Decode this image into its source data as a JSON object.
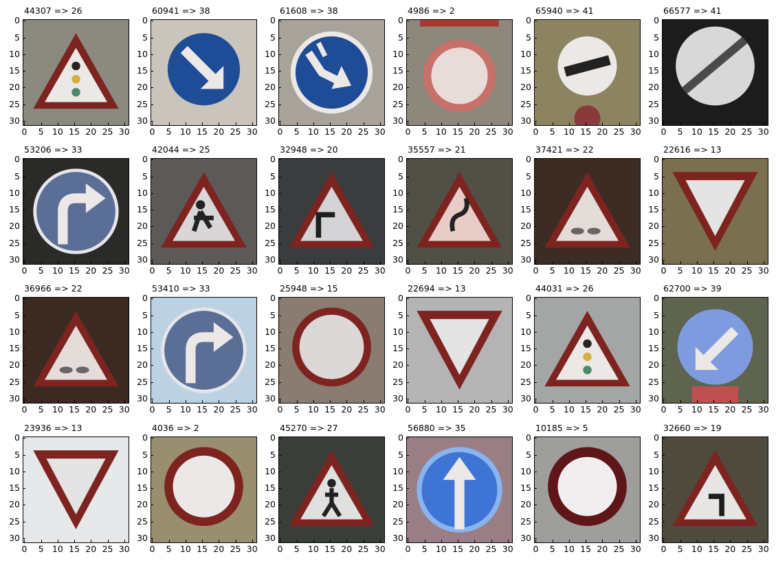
{
  "axis": {
    "ticks": [
      "0",
      "5",
      "10",
      "15",
      "20",
      "25",
      "30"
    ],
    "tick_values": [
      0,
      5,
      10,
      15,
      20,
      25,
      30
    ],
    "range": [
      -0.5,
      31.5
    ]
  },
  "panels": [
    {
      "title": "44307 => 26",
      "icon": "traffic-signals-warning-sign",
      "bg": "#8a8a80"
    },
    {
      "title": "60941 => 38",
      "icon": "keep-right-sign",
      "bg": "#c9c4bc"
    },
    {
      "title": "61608 => 38",
      "icon": "keep-right-sign-damaged",
      "bg": "#a7a39a"
    },
    {
      "title": "4986 => 2",
      "icon": "speed-limit-50-sign-blurred",
      "bg": "#8d887c"
    },
    {
      "title": "65940 => 41",
      "icon": "end-of-no-passing-sign",
      "bg": "#8c8460"
    },
    {
      "title": "66577 => 41",
      "icon": "end-of-no-passing-sign-dark",
      "bg": "#1c1c1c"
    },
    {
      "title": "53206 => 33",
      "icon": "turn-right-ahead-sign",
      "bg": "#2a2a28"
    },
    {
      "title": "42044 => 25",
      "icon": "road-work-sign",
      "bg": "#5c5a58"
    },
    {
      "title": "32948 => 20",
      "icon": "dangerous-curve-right-sign",
      "bg": "#3a3c3e"
    },
    {
      "title": "35557 => 21",
      "icon": "double-curve-sign",
      "bg": "#505046"
    },
    {
      "title": "37421 => 22",
      "icon": "bumpy-road-sign",
      "bg": "#3c2c24"
    },
    {
      "title": "22616 => 13",
      "icon": "yield-sign",
      "bg": "#7a7050"
    },
    {
      "title": "36966 => 22",
      "icon": "bumpy-road-sign",
      "bg": "#3a2a22"
    },
    {
      "title": "53410 => 33",
      "icon": "turn-right-ahead-sign",
      "bg": "#bcd2e2"
    },
    {
      "title": "25948 => 15",
      "icon": "no-vehicles-sign",
      "bg": "#8a7c70"
    },
    {
      "title": "22694 => 13",
      "icon": "yield-sign",
      "bg": "#b4b4b4"
    },
    {
      "title": "44031 => 26",
      "icon": "traffic-signals-warning-sign",
      "bg": "#a4a6a6"
    },
    {
      "title": "62700 => 39",
      "icon": "keep-left-sign",
      "bg": "#5e6450"
    },
    {
      "title": "23936 => 13",
      "icon": "yield-sign",
      "bg": "#e6e8ea"
    },
    {
      "title": "4036 => 2",
      "icon": "speed-limit-50-sign",
      "bg": "#9a8e70"
    },
    {
      "title": "45270 => 27",
      "icon": "pedestrians-sign",
      "bg": "#3a3e38"
    },
    {
      "title": "56880 => 35",
      "icon": "ahead-only-sign",
      "bg": "#9a7e86"
    },
    {
      "title": "10185 => 5",
      "icon": "speed-limit-80-sign",
      "bg": "#9e9e9c"
    },
    {
      "title": "32660 => 19",
      "icon": "dangerous-curve-left-sign",
      "bg": "#4e4a3e"
    }
  ]
}
